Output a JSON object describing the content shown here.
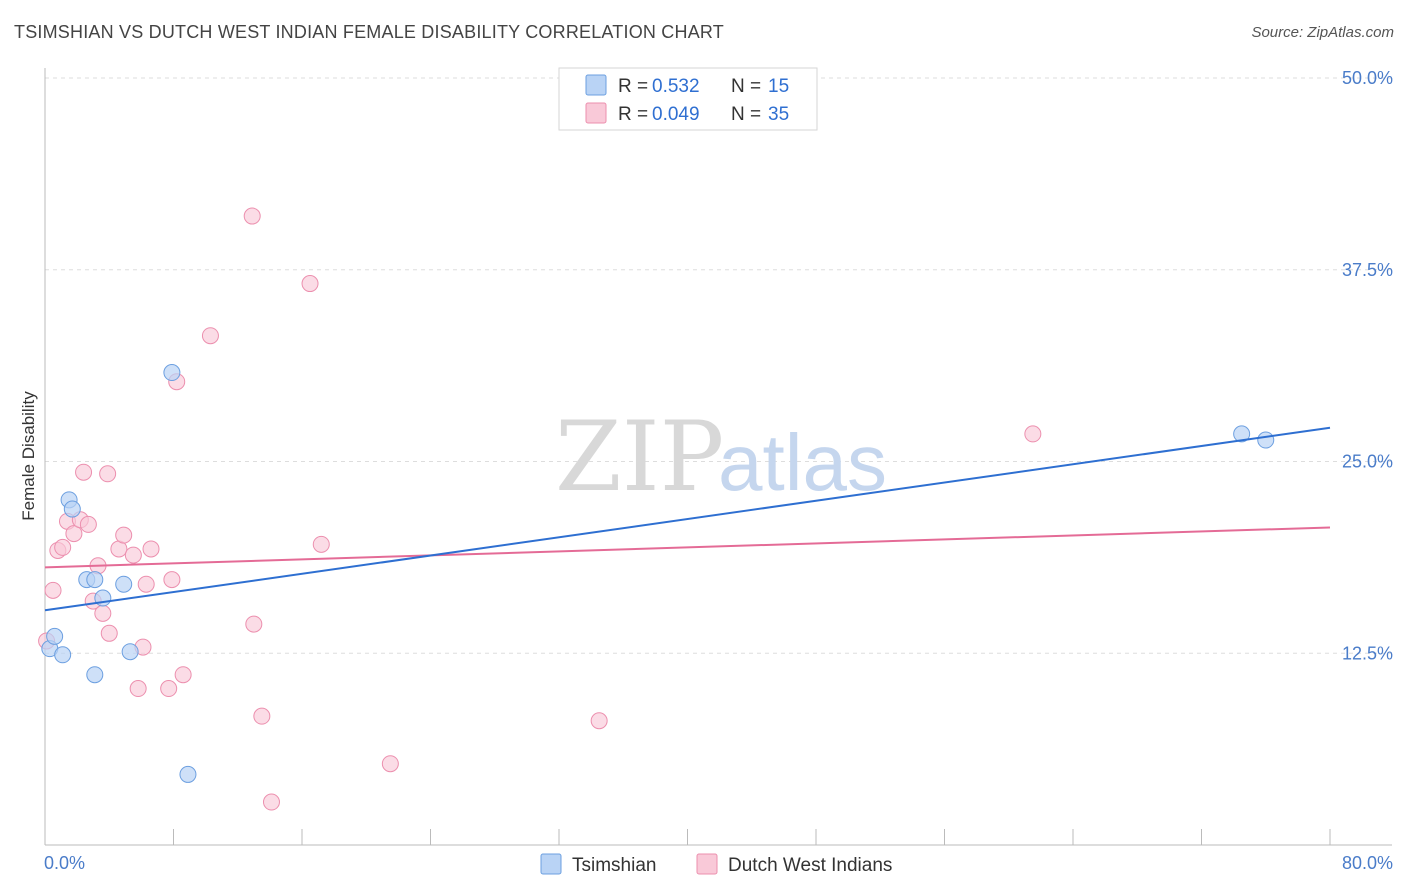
{
  "header": {
    "title": "TSIMSHIAN VS DUTCH WEST INDIAN FEMALE DISABILITY CORRELATION CHART",
    "source": "Source: ZipAtlas.com"
  },
  "watermark": {
    "zip": "ZIP",
    "atlas": "atlas"
  },
  "colors": {
    "blue_fill": "#b9d3f5",
    "blue_stroke": "#6c9fe0",
    "blue_line": "#2e6fd1",
    "pink_fill": "#f9c9d8",
    "pink_stroke": "#ec8fae",
    "pink_line": "#e46b96",
    "grid": "#dddddd",
    "axis_text": "#4a7cc9"
  },
  "legend": {
    "rows": [
      {
        "r_label": "R =",
        "r_value": "0.532",
        "n_label": "N =",
        "n_value": "15"
      },
      {
        "r_label": "R =",
        "r_value": "0.049",
        "n_label": "N =",
        "n_value": "35"
      }
    ]
  },
  "chart_data": {
    "type": "scatter",
    "title": "TSIMSHIAN VS DUTCH WEST INDIAN FEMALE DISABILITY CORRELATION CHART",
    "xlabel": "",
    "ylabel": "Female Disability",
    "xlim": [
      0,
      80
    ],
    "ylim": [
      0,
      50
    ],
    "x_tick_labels": [
      "0.0%",
      "80.0%"
    ],
    "y_ticks": [
      12.5,
      25.0,
      37.5,
      50.0
    ],
    "y_tick_labels": [
      "12.5%",
      "25.0%",
      "37.5%",
      "50.0%"
    ],
    "grid": true,
    "series": [
      {
        "name": "Tsimshian",
        "points": [
          [
            0.3,
            12.8
          ],
          [
            0.6,
            13.6
          ],
          [
            1.1,
            12.4
          ],
          [
            1.5,
            22.5
          ],
          [
            1.7,
            21.9
          ],
          [
            2.6,
            17.3
          ],
          [
            3.1,
            17.3
          ],
          [
            3.6,
            16.1
          ],
          [
            4.9,
            17.0
          ],
          [
            5.3,
            12.6
          ],
          [
            3.1,
            11.1
          ],
          [
            7.9,
            30.8
          ],
          [
            8.9,
            4.6
          ],
          [
            74.5,
            26.8
          ],
          [
            76.0,
            26.4
          ]
        ],
        "trendline": {
          "x": [
            0,
            80
          ],
          "y": [
            15.3,
            27.2
          ]
        }
      },
      {
        "name": "Dutch West Indians",
        "points": [
          [
            0.1,
            13.3
          ],
          [
            0.5,
            16.6
          ],
          [
            0.8,
            19.2
          ],
          [
            1.1,
            19.4
          ],
          [
            1.4,
            21.1
          ],
          [
            1.8,
            20.3
          ],
          [
            2.2,
            21.2
          ],
          [
            2.4,
            24.3
          ],
          [
            2.7,
            20.9
          ],
          [
            3.0,
            15.9
          ],
          [
            3.3,
            18.2
          ],
          [
            3.6,
            15.1
          ],
          [
            3.9,
            24.2
          ],
          [
            4.0,
            13.8
          ],
          [
            4.6,
            19.3
          ],
          [
            4.9,
            20.2
          ],
          [
            5.5,
            18.9
          ],
          [
            5.8,
            10.2
          ],
          [
            6.1,
            12.9
          ],
          [
            6.3,
            17.0
          ],
          [
            6.6,
            19.3
          ],
          [
            7.7,
            10.2
          ],
          [
            7.9,
            17.3
          ],
          [
            8.2,
            30.2
          ],
          [
            8.6,
            11.1
          ],
          [
            10.3,
            33.2
          ],
          [
            12.9,
            41.0
          ],
          [
            13.0,
            14.4
          ],
          [
            13.5,
            8.4
          ],
          [
            14.1,
            2.8
          ],
          [
            16.5,
            36.6
          ],
          [
            17.2,
            19.6
          ],
          [
            21.5,
            5.3
          ],
          [
            34.5,
            8.1
          ],
          [
            61.5,
            26.8
          ]
        ],
        "trendline": {
          "x": [
            0,
            80
          ],
          "y": [
            18.1,
            20.7
          ]
        }
      }
    ]
  }
}
